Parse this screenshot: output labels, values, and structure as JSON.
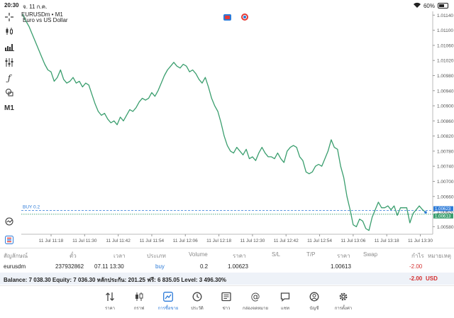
{
  "status_bar": {
    "time": "20:30",
    "date": "จ. 11 ก.ค.",
    "battery": "60%",
    "battery_level": 0.6
  },
  "chart": {
    "symbol": "EURUSDm • M1",
    "description": "Euro vs US Dollar",
    "timeframe_label": "M1",
    "bid_price_tag": "1.00623",
    "ask_price_tag": "1.00613",
    "buy_label": "BUY 0.2",
    "line_color": "#3a9e6e",
    "accent": "#2d7bd8"
  },
  "chart_data": {
    "type": "line",
    "x_ticks": [
      "11 Jul 11:18",
      "11 Jul 11:30",
      "11 Jul 11:42",
      "11 Jul 11:54",
      "11 Jul 12:06",
      "11 Jul 12:18",
      "11 Jul 12:30",
      "11 Jul 12:42",
      "11 Jul 12:54",
      "11 Jul 13:06",
      "11 Jul 13:18",
      "11 Jul 13:30"
    ],
    "y_ticks": [
      "1.01140",
      "1.01100",
      "1.01060",
      "1.01020",
      "1.00980",
      "1.00940",
      "1.00900",
      "1.00860",
      "1.00820",
      "1.00780",
      "1.00740",
      "1.00700",
      "1.00660",
      "1.00620",
      "1.00580"
    ],
    "ylim": [
      1.0056,
      1.0115
    ],
    "y_levels": {
      "buy_price": 1.00623,
      "current_price": 1.00613
    },
    "series": [
      {
        "values": [
          1.01142,
          1.01125,
          1.0111,
          1.0109,
          1.0107,
          1.0105,
          1.0103,
          1.0101,
          1.00995,
          1.0099,
          1.00965,
          1.00975,
          1.00995,
          1.0097,
          1.0096,
          1.00965,
          1.00975,
          1.0096,
          1.00965,
          1.0095,
          1.0096,
          1.00955,
          1.0093,
          1.00905,
          1.00885,
          1.00875,
          1.0088,
          1.00865,
          1.00855,
          1.0086,
          1.0085,
          1.0087,
          1.0086,
          1.00875,
          1.0089,
          1.00885,
          1.00895,
          1.0091,
          1.0092,
          1.00915,
          1.0092,
          1.00935,
          1.00925,
          1.0094,
          1.0096,
          1.0098,
          1.00995,
          1.01005,
          1.01015,
          1.01005,
          1.01,
          1.0101,
          1.01005,
          1.0099,
          1.00995,
          1.00985,
          1.0097,
          1.0096,
          1.00975,
          1.0095,
          1.0092,
          1.009,
          1.00885,
          1.00855,
          1.0082,
          1.00795,
          1.0078,
          1.00775,
          1.0079,
          1.0078,
          1.0077,
          1.00785,
          1.0076,
          1.00765,
          1.00755,
          1.00775,
          1.0079,
          1.00775,
          1.00765,
          1.00765,
          1.0076,
          1.00775,
          1.0076,
          1.0075,
          1.0078,
          1.0079,
          1.00795,
          1.0079,
          1.00765,
          1.00755,
          1.00725,
          1.0072,
          1.00725,
          1.0074,
          1.00745,
          1.0074,
          1.0076,
          1.0078,
          1.0081,
          1.0079,
          1.00785,
          1.0074,
          1.0071,
          1.0066,
          1.00625,
          1.00585,
          1.0058,
          1.006,
          1.00595,
          1.00575,
          1.0057,
          1.00605,
          1.00625,
          1.00645,
          1.0063,
          1.0063,
          1.00635,
          1.00625,
          1.00635,
          1.0061,
          1.0063,
          1.0063,
          1.0063,
          1.0059,
          1.00615,
          1.00625,
          1.00635,
          1.00625,
          1.00618
        ]
      }
    ]
  },
  "positions": {
    "headers": [
      "สัญลักษณ์",
      "ตั๋ว",
      "เวลา",
      "ประเภท",
      "Volume",
      "ราคา",
      "S/L",
      "T/P",
      "ราคา",
      "Swap",
      "กำไร",
      "หมายเหตุ"
    ],
    "row": {
      "symbol": "eurusdm",
      "ticket": "237932862",
      "time": "07.11 13:30",
      "type": "buy",
      "volume": "0.2",
      "open_price": "1.00623",
      "current_price": "1.00613",
      "profit": "-2.00"
    },
    "balance_text": "Balance: 7 038.30 Equity: 7 036.30 หลักประกัน: 201.25 ฟรี: 6 835.05 Level: 3 496.30%",
    "total_profit": "-2.00",
    "currency": "USD",
    "profit_color": "#d32f2f"
  },
  "tabs": [
    {
      "label": "ราคา",
      "icon": "sort-arrows-icon"
    },
    {
      "label": "กราฟ",
      "icon": "candles-icon"
    },
    {
      "label": "การซื้อขาย",
      "icon": "trade-chart-icon"
    },
    {
      "label": "ประวัติ",
      "icon": "history-icon"
    },
    {
      "label": "ข่าว",
      "icon": "news-icon"
    },
    {
      "label": "กล่องจดหมาย",
      "icon": "mailbox-icon"
    },
    {
      "label": "แชท",
      "icon": "chat-icon"
    },
    {
      "label": "บัญชี",
      "icon": "account-icon"
    },
    {
      "label": "การตั้งค่า",
      "icon": "gear-icon"
    }
  ]
}
